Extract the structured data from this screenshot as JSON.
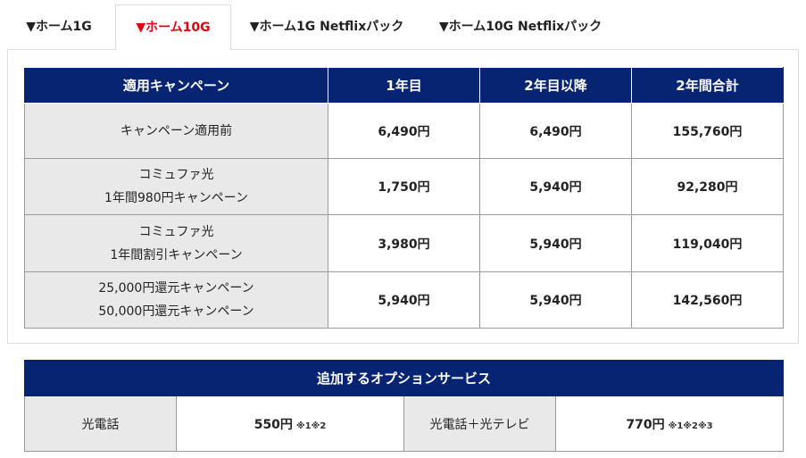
{
  "tabs": [
    {
      "label": "▼ホーム1G",
      "active": false
    },
    {
      "label": "▼ホーム10G",
      "active": true
    },
    {
      "label": "▼ホーム1G Netflixパック",
      "active": false
    },
    {
      "label": "▼ホーム10G Netflixパック",
      "active": false
    }
  ],
  "campaign_table": {
    "headers": [
      "適用キャンペーン",
      "1年目",
      "2年目以降",
      "2年間合計"
    ],
    "rows": [
      {
        "name_line1": "キャンペーン適用前",
        "name_line2": "",
        "year1": "6,490円",
        "year2": "6,490円",
        "total": "155,760円"
      },
      {
        "name_line1": "コミュファ光",
        "name_line2": "1年間980円キャンペーン",
        "year1": "1,750円",
        "year2": "5,940円",
        "total": "92,280円"
      },
      {
        "name_line1": "コミュファ光",
        "name_line2": "1年間割引キャンペーン",
        "year1": "3,980円",
        "year2": "5,940円",
        "total": "119,040円"
      },
      {
        "name_line1": "25,000円還元キャンペーン",
        "name_line2": "50,000円還元キャンペーン",
        "year1": "5,940円",
        "year2": "5,940円",
        "total": "142,560円"
      }
    ]
  },
  "options_table": {
    "title": "追加するオプションサービス",
    "items": [
      {
        "label": "光電話",
        "price": "550円",
        "note": "※1※2"
      },
      {
        "label": "光電話＋光テレビ",
        "price": "770円",
        "note": "※1※2※3"
      }
    ]
  },
  "colors": {
    "header_bg": "#072473",
    "active_tab": "#e60012",
    "label_cell_bg": "#e9e9e9"
  }
}
